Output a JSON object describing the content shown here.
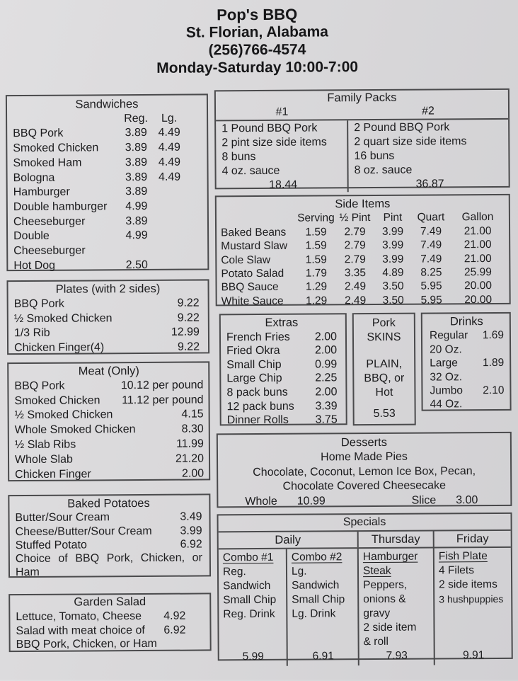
{
  "header": {
    "name": "Pop's BBQ",
    "location": "St. Florian, Alabama",
    "phone": "(256)766-4574",
    "hours": "Monday-Saturday 10:00-7:00"
  },
  "sandwiches": {
    "title": "Sandwiches",
    "col_reg": "Reg.",
    "col_lg": "Lg.",
    "items": [
      {
        "name": "BBQ Pork",
        "reg": "3.89",
        "lg": "4.49"
      },
      {
        "name": "Smoked Chicken",
        "reg": "3.89",
        "lg": "4.49"
      },
      {
        "name": "Smoked Ham",
        "reg": "3.89",
        "lg": "4.49"
      },
      {
        "name": "Bologna",
        "reg": "3.89",
        "lg": "4.49"
      },
      {
        "name": "Hamburger",
        "reg": "3.89",
        "lg": ""
      },
      {
        "name": "Double hamburger",
        "reg": "4.99",
        "lg": ""
      },
      {
        "name": "Cheeseburger",
        "reg": "3.89",
        "lg": ""
      },
      {
        "name": "Double Cheeseburger",
        "reg": "4.99",
        "lg": ""
      },
      {
        "name": "Hot Dog",
        "reg": "2.50",
        "lg": ""
      }
    ]
  },
  "plates": {
    "title": "Plates (with 2 sides)",
    "items": [
      {
        "name": "BBQ Pork",
        "price": "9.22"
      },
      {
        "name": "½ Smoked Chicken",
        "price": "9.22"
      },
      {
        "name": "1/3 Rib",
        "price": "12.99"
      },
      {
        "name": "Chicken Finger(4)",
        "price": "9.22"
      }
    ]
  },
  "meat": {
    "title": "Meat (Only)",
    "items": [
      {
        "name": "BBQ Pork",
        "price": "10.12 per pound"
      },
      {
        "name": "Smoked Chicken",
        "price": "11.12 per pound"
      },
      {
        "name": "½ Smoked Chicken",
        "price": "4.15"
      },
      {
        "name": "Whole Smoked Chicken",
        "price": "8.30"
      },
      {
        "name": "½ Slab Ribs",
        "price": "11.99"
      },
      {
        "name": "Whole Slab",
        "price": "21.20"
      },
      {
        "name": "Chicken Finger",
        "price": "2.00"
      }
    ]
  },
  "baked_potatoes": {
    "title": "Baked Potatoes",
    "items": [
      {
        "name": "Butter/Sour Cream",
        "price": "3.49"
      },
      {
        "name": "Cheese/Butter/Sour Cream",
        "price": "3.99"
      },
      {
        "name": "Stuffed Potato",
        "price": "6.92"
      }
    ],
    "note": "Choice of BBQ Pork, Chicken, or Ham"
  },
  "garden_salad": {
    "title": "Garden Salad",
    "items": [
      {
        "name": "Lettuce, Tomato, Cheese",
        "price": "4.92"
      },
      {
        "name": "Salad with meat choice of",
        "price": "6.92"
      }
    ],
    "note": "BBQ Pork, Chicken, or Ham"
  },
  "family_packs": {
    "title": "Family Packs",
    "packs": [
      {
        "label": "#1",
        "lines": [
          "1 Pound BBQ Pork",
          "2 pint size side items",
          "8 buns",
          "4 oz. sauce"
        ],
        "price": "18.44"
      },
      {
        "label": "#2",
        "lines": [
          "2 Pound BBQ Pork",
          "2 quart size side items",
          "16 buns",
          "8 oz. sauce"
        ],
        "price": "36.87"
      }
    ]
  },
  "side_items": {
    "title": "Side Items",
    "columns": [
      "Serving",
      "½ Pint",
      "Pint",
      "Quart",
      "Gallon"
    ],
    "rows": [
      {
        "name": "Baked Beans",
        "prices": [
          "1.59",
          "2.79",
          "3.99",
          "7.49",
          "21.00"
        ]
      },
      {
        "name": "Mustard Slaw",
        "prices": [
          "1.59",
          "2.79",
          "3.99",
          "7.49",
          "21.00"
        ]
      },
      {
        "name": "Cole Slaw",
        "prices": [
          "1.59",
          "2.79",
          "3.99",
          "7.49",
          "21.00"
        ]
      },
      {
        "name": "Potato Salad",
        "prices": [
          "1.79",
          "3.35",
          "4.89",
          "8.25",
          "25.99"
        ]
      },
      {
        "name": "BBQ Sauce",
        "prices": [
          "1.29",
          "2.49",
          "3.50",
          "5.95",
          "20.00"
        ]
      },
      {
        "name": "White Sauce",
        "prices": [
          "1.29",
          "2.49",
          "3.50",
          "5.95",
          "20.00"
        ]
      }
    ]
  },
  "extras": {
    "title": "Extras",
    "items": [
      {
        "name": "French Fries",
        "price": "2.00"
      },
      {
        "name": "Fried Okra",
        "price": "2.00"
      },
      {
        "name": "Small Chip",
        "price": "0.99"
      },
      {
        "name": "Large Chip",
        "price": "2.25"
      },
      {
        "name": "8 pack buns",
        "price": "2.00"
      },
      {
        "name": "12 pack buns",
        "price": "3.39"
      },
      {
        "name": "Dinner Rolls",
        "price": "3.75"
      }
    ]
  },
  "pork_skins": {
    "title_line1": "Pork",
    "title_line2": "SKINS",
    "flavor_line1": "PLAIN,",
    "flavor_line2": "BBQ, or",
    "flavor_line3": "Hot",
    "price": "5.53"
  },
  "drinks": {
    "title": "Drinks",
    "items": [
      {
        "name": "Regular",
        "size": "20 Oz.",
        "price": "1.69"
      },
      {
        "name": "Large",
        "size": "32 Oz.",
        "price": "1.89"
      },
      {
        "name": "Jumbo",
        "size": "44 Oz.",
        "price": "2.10"
      }
    ]
  },
  "desserts": {
    "title": "Desserts",
    "subtitle": "Home Made Pies",
    "flavors_line1": "Chocolate, Coconut, Lemon Ice Box, Pecan,",
    "flavors_line2": "Chocolate Covered Cheesecake",
    "whole_label": "Whole",
    "whole_price": "10.99",
    "slice_label": "Slice",
    "slice_price": "3.00"
  },
  "specials": {
    "title": "Specials",
    "day_daily": "Daily",
    "day_thursday": "Thursday",
    "day_friday": "Friday",
    "columns": [
      {
        "heading_line1": "Combo #1",
        "heading_line2": "",
        "lines": [
          "Reg.",
          "Sandwich",
          "Small Chip",
          "Reg. Drink"
        ],
        "price": "5.99"
      },
      {
        "heading_line1": "Combo #2",
        "heading_line2": "",
        "lines": [
          "Lg.",
          "Sandwich",
          "Small Chip",
          "Lg. Drink"
        ],
        "price": "6.91"
      },
      {
        "heading_line1": "Hamburger",
        "heading_line2": "Steak",
        "lines": [
          "Peppers,",
          "onions &",
          "gravy",
          "2 side item",
          "& roll"
        ],
        "price": "7.93"
      },
      {
        "heading_line1": "Fish Plate",
        "heading_line2": "",
        "lines": [
          "4 Filets",
          "2 side items",
          "3 hushpuppies"
        ],
        "price": "9.91"
      }
    ]
  }
}
